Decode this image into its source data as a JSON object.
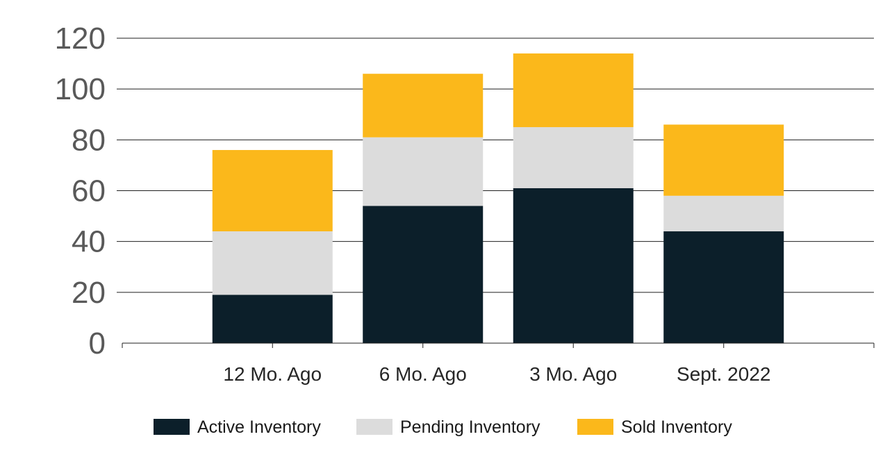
{
  "chart_data": {
    "type": "bar",
    "stacked": true,
    "categories": [
      "12 Mo. Ago",
      "6 Mo. Ago",
      "3 Mo. Ago",
      "Sept. 2022"
    ],
    "series": [
      {
        "name": "Active Inventory",
        "values": [
          19,
          54,
          61,
          44
        ],
        "color": "#0c1f2a"
      },
      {
        "name": "Pending Inventory",
        "values": [
          25,
          27,
          24,
          14
        ],
        "color": "#dcdcdc"
      },
      {
        "name": "Sold Inventory",
        "values": [
          32,
          25,
          29,
          28
        ],
        "color": "#fbb81b"
      }
    ],
    "ylim": [
      0,
      120
    ],
    "yticks": [
      0,
      20,
      40,
      60,
      80,
      100,
      120
    ],
    "grid": true,
    "legend_position": "bottom"
  }
}
